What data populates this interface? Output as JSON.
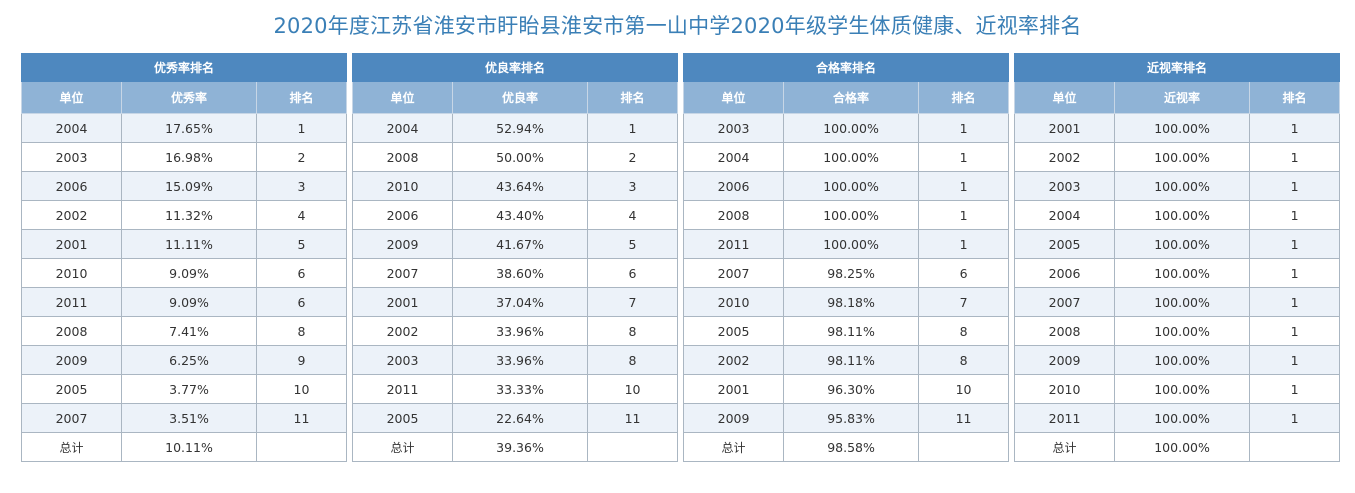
{
  "page": {
    "title": "2020年度江苏省淮安市盱眙县淮安市第一山中学2020年级学生体质健康、近视率排名"
  },
  "tables": [
    {
      "title": "优秀率排名",
      "headers": [
        "单位",
        "优秀率",
        "排名"
      ],
      "rows": [
        [
          "2004",
          "17.65%",
          "1"
        ],
        [
          "2003",
          "16.98%",
          "2"
        ],
        [
          "2006",
          "15.09%",
          "3"
        ],
        [
          "2002",
          "11.32%",
          "4"
        ],
        [
          "2001",
          "11.11%",
          "5"
        ],
        [
          "2010",
          "9.09%",
          "6"
        ],
        [
          "2011",
          "9.09%",
          "6"
        ],
        [
          "2008",
          "7.41%",
          "8"
        ],
        [
          "2009",
          "6.25%",
          "9"
        ],
        [
          "2005",
          "3.77%",
          "10"
        ],
        [
          "2007",
          "3.51%",
          "11"
        ]
      ],
      "total": [
        "总计",
        "10.11%",
        ""
      ]
    },
    {
      "title": "优良率排名",
      "headers": [
        "单位",
        "优良率",
        "排名"
      ],
      "rows": [
        [
          "2004",
          "52.94%",
          "1"
        ],
        [
          "2008",
          "50.00%",
          "2"
        ],
        [
          "2010",
          "43.64%",
          "3"
        ],
        [
          "2006",
          "43.40%",
          "4"
        ],
        [
          "2009",
          "41.67%",
          "5"
        ],
        [
          "2007",
          "38.60%",
          "6"
        ],
        [
          "2001",
          "37.04%",
          "7"
        ],
        [
          "2002",
          "33.96%",
          "8"
        ],
        [
          "2003",
          "33.96%",
          "8"
        ],
        [
          "2011",
          "33.33%",
          "10"
        ],
        [
          "2005",
          "22.64%",
          "11"
        ]
      ],
      "total": [
        "总计",
        "39.36%",
        ""
      ]
    },
    {
      "title": "合格率排名",
      "headers": [
        "单位",
        "合格率",
        "排名"
      ],
      "rows": [
        [
          "2003",
          "100.00%",
          "1"
        ],
        [
          "2004",
          "100.00%",
          "1"
        ],
        [
          "2006",
          "100.00%",
          "1"
        ],
        [
          "2008",
          "100.00%",
          "1"
        ],
        [
          "2011",
          "100.00%",
          "1"
        ],
        [
          "2007",
          "98.25%",
          "6"
        ],
        [
          "2010",
          "98.18%",
          "7"
        ],
        [
          "2005",
          "98.11%",
          "8"
        ],
        [
          "2002",
          "98.11%",
          "8"
        ],
        [
          "2001",
          "96.30%",
          "10"
        ],
        [
          "2009",
          "95.83%",
          "11"
        ]
      ],
      "total": [
        "总计",
        "98.58%",
        ""
      ]
    },
    {
      "title": "近视率排名",
      "headers": [
        "单位",
        "近视率",
        "排名"
      ],
      "rows": [
        [
          "2001",
          "100.00%",
          "1"
        ],
        [
          "2002",
          "100.00%",
          "1"
        ],
        [
          "2003",
          "100.00%",
          "1"
        ],
        [
          "2004",
          "100.00%",
          "1"
        ],
        [
          "2005",
          "100.00%",
          "1"
        ],
        [
          "2006",
          "100.00%",
          "1"
        ],
        [
          "2007",
          "100.00%",
          "1"
        ],
        [
          "2008",
          "100.00%",
          "1"
        ],
        [
          "2009",
          "100.00%",
          "1"
        ],
        [
          "2010",
          "100.00%",
          "1"
        ],
        [
          "2011",
          "100.00%",
          "1"
        ]
      ],
      "total": [
        "总计",
        "100.00%",
        ""
      ]
    }
  ]
}
